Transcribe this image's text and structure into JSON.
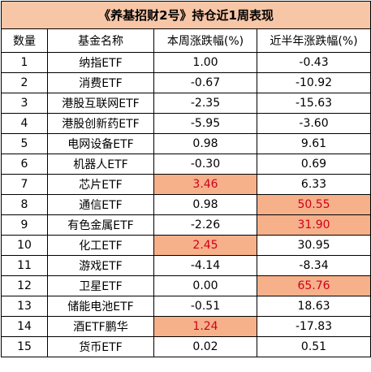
{
  "title": "《养基招财2号》持仓近1周表现",
  "headers": [
    "数量",
    "基金名称",
    "本周涨跌幅(%)",
    "近半年涨跌幅(%)"
  ],
  "colors": {
    "title_bg": "#f7c6a7",
    "highlight_bg": "#f6b08a",
    "red_text": "#d0001b"
  },
  "rows": [
    {
      "num": "1",
      "name": "纳指ETF",
      "week": "1.00",
      "half": "-0.43",
      "week_hl": false,
      "half_hl": false
    },
    {
      "num": "2",
      "name": "消费ETF",
      "week": "-0.67",
      "half": "-10.92",
      "week_hl": false,
      "half_hl": false
    },
    {
      "num": "3",
      "name": "港股互联网ETF",
      "week": "-2.35",
      "half": "-15.63",
      "week_hl": false,
      "half_hl": false
    },
    {
      "num": "4",
      "name": "港股创新药ETF",
      "week": "-5.95",
      "half": "-3.60",
      "week_hl": false,
      "half_hl": false
    },
    {
      "num": "5",
      "name": "电网设备ETF",
      "week": "0.98",
      "half": "9.61",
      "week_hl": false,
      "half_hl": false
    },
    {
      "num": "6",
      "name": "机器人ETF",
      "week": "-0.30",
      "half": "0.69",
      "week_hl": false,
      "half_hl": false
    },
    {
      "num": "7",
      "name": "芯片ETF",
      "week": "3.46",
      "half": "6.33",
      "week_hl": true,
      "half_hl": false
    },
    {
      "num": "8",
      "name": "通信ETF",
      "week": "0.98",
      "half": "50.55",
      "week_hl": false,
      "half_hl": true
    },
    {
      "num": "9",
      "name": "有色金属ETF",
      "week": "-2.26",
      "half": "31.90",
      "week_hl": false,
      "half_hl": true
    },
    {
      "num": "10",
      "name": "化工ETF",
      "week": "2.45",
      "half": "30.95",
      "week_hl": true,
      "half_hl": false
    },
    {
      "num": "11",
      "name": "游戏ETF",
      "week": "-4.14",
      "half": "-8.34",
      "week_hl": false,
      "half_hl": false
    },
    {
      "num": "12",
      "name": "卫星ETF",
      "week": "0.00",
      "half": "65.76",
      "week_hl": false,
      "half_hl": true
    },
    {
      "num": "13",
      "name": "储能电池ETF",
      "week": "-0.51",
      "half": "18.63",
      "week_hl": false,
      "half_hl": false
    },
    {
      "num": "14",
      "name": "酒ETF鹏华",
      "week": "1.24",
      "half": "-17.83",
      "week_hl": true,
      "half_hl": false
    },
    {
      "num": "15",
      "name": "货币ETF",
      "week": "0.02",
      "half": "0.51",
      "week_hl": false,
      "half_hl": false
    }
  ]
}
